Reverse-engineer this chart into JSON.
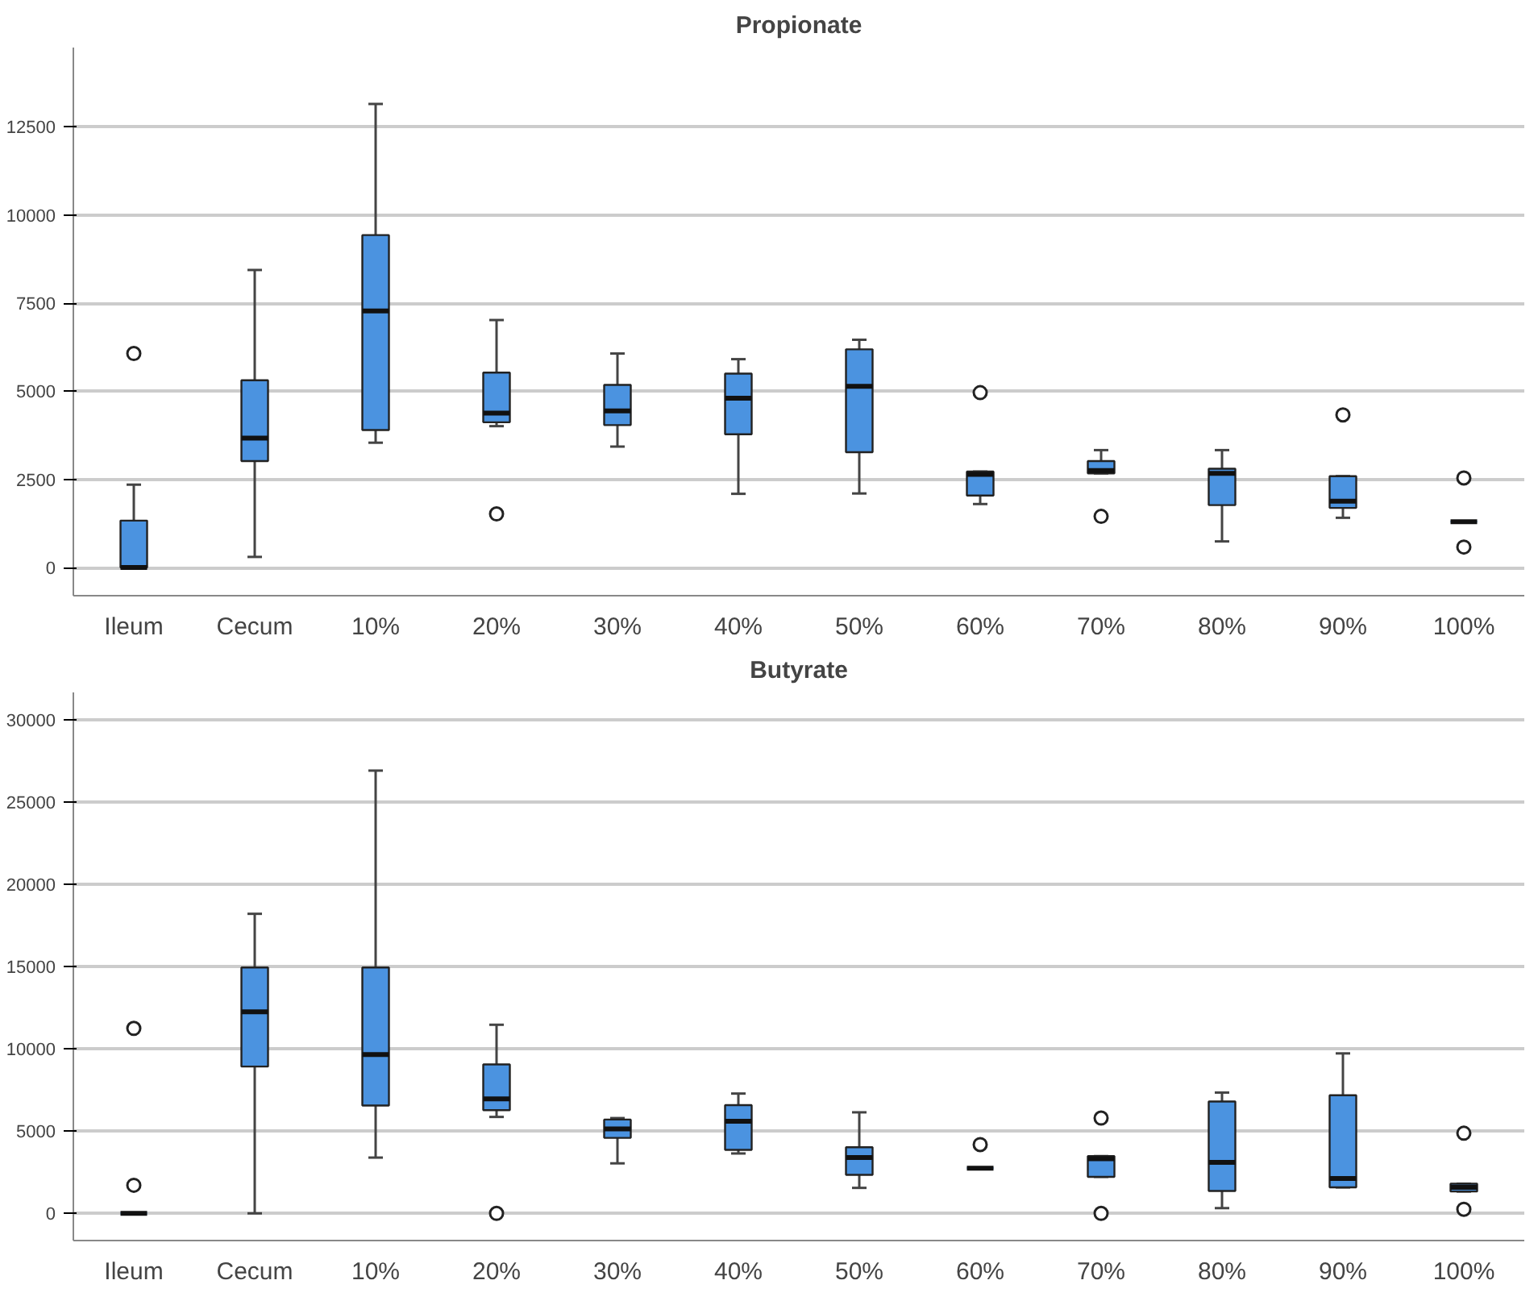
{
  "chart_data": [
    {
      "type": "box",
      "title": "Propionate",
      "categories": [
        "Ileum",
        "Cecum",
        "10%",
        "20%",
        "30%",
        "40%",
        "50%",
        "60%",
        "70%",
        "80%",
        "90%",
        "100%"
      ],
      "ylim": [
        -800,
        14750
      ],
      "yticks": [
        0,
        2500,
        5000,
        7500,
        10000,
        12500
      ],
      "grid": "y",
      "series": [
        {
          "color": "#4b93e0",
          "boxes": [
            {
              "low": 0,
              "q1": 0,
              "median": 0,
              "q3": 1330,
              "high": 2350,
              "outliers": [
                6070
              ]
            },
            {
              "low": 300,
              "q1": 3020,
              "median": 3670,
              "q3": 5310,
              "high": 8440
            },
            {
              "low": 3540,
              "q1": 3900,
              "median": 7280,
              "q3": 9430,
              "high": 13150
            },
            {
              "low": 4010,
              "q1": 4120,
              "median": 4380,
              "q3": 5530,
              "high": 7020,
              "outliers": [
                1520
              ]
            },
            {
              "low": 3430,
              "q1": 4040,
              "median": 4440,
              "q3": 5180,
              "high": 6070
            },
            {
              "low": 2090,
              "q1": 3780,
              "median": 4800,
              "q3": 5500,
              "high": 5910
            },
            {
              "low": 2100,
              "q1": 3270,
              "median": 5140,
              "q3": 6190,
              "high": 6460
            },
            {
              "low": 1800,
              "q1": 2040,
              "median": 2640,
              "q3": 2720,
              "high": 2720,
              "outliers": [
                4960
              ]
            },
            {
              "low": 2670,
              "q1": 2670,
              "median": 2750,
              "q3": 3020,
              "high": 3330,
              "outliers": [
                1450
              ]
            },
            {
              "low": 740,
              "q1": 1770,
              "median": 2670,
              "q3": 2800,
              "high": 3330
            },
            {
              "low": 1410,
              "q1": 1690,
              "median": 1880,
              "q3": 2590,
              "high": 2590,
              "outliers": [
                4330
              ]
            },
            {
              "low": 1300,
              "q1": 1300,
              "median": 1300,
              "q3": 1300,
              "high": 1300,
              "outliers": [
                2540,
                580
              ]
            }
          ]
        }
      ]
    },
    {
      "type": "box",
      "title": "Butyrate",
      "categories": [
        "Ileum",
        "Cecum",
        "10%",
        "20%",
        "30%",
        "40%",
        "50%",
        "60%",
        "70%",
        "80%",
        "90%",
        "100%"
      ],
      "ylim": [
        -1650,
        31650
      ],
      "yticks": [
        0,
        5000,
        10000,
        15000,
        20000,
        25000,
        30000
      ],
      "grid": "y",
      "series": [
        {
          "color": "#4b93e0",
          "boxes": [
            {
              "low": 0,
              "q1": 0,
              "median": 0,
              "q3": 0,
              "high": 0,
              "outliers": [
                11240,
                1710
              ]
            },
            {
              "low": 0,
              "q1": 8920,
              "median": 12250,
              "q3": 14940,
              "high": 18200
            },
            {
              "low": 3390,
              "q1": 6550,
              "median": 9650,
              "q3": 14940,
              "high": 26900
            },
            {
              "low": 5860,
              "q1": 6270,
              "median": 6960,
              "q3": 9050,
              "high": 11460,
              "outliers": [
                0
              ]
            },
            {
              "low": 3040,
              "q1": 4590,
              "median": 5130,
              "q3": 5700,
              "high": 5790
            },
            {
              "low": 3640,
              "q1": 3860,
              "median": 5600,
              "q3": 6580,
              "high": 7280
            },
            {
              "low": 1550,
              "q1": 2340,
              "median": 3390,
              "q3": 4020,
              "high": 6140
            },
            {
              "low": 2750,
              "q1": 2750,
              "median": 2750,
              "q3": 2750,
              "high": 2750,
              "outliers": [
                4180
              ]
            },
            {
              "low": 2220,
              "q1": 2220,
              "median": 3320,
              "q3": 3480,
              "high": 3480,
              "outliers": [
                5790,
                0
              ]
            },
            {
              "low": 320,
              "q1": 1360,
              "median": 3100,
              "q3": 6800,
              "high": 7340
            },
            {
              "low": 1580,
              "q1": 1580,
              "median": 2120,
              "q3": 7180,
              "high": 9720
            },
            {
              "low": 1330,
              "q1": 1330,
              "median": 1580,
              "q3": 1800,
              "high": 1800,
              "outliers": [
                4870,
                250
              ]
            }
          ]
        }
      ]
    }
  ]
}
